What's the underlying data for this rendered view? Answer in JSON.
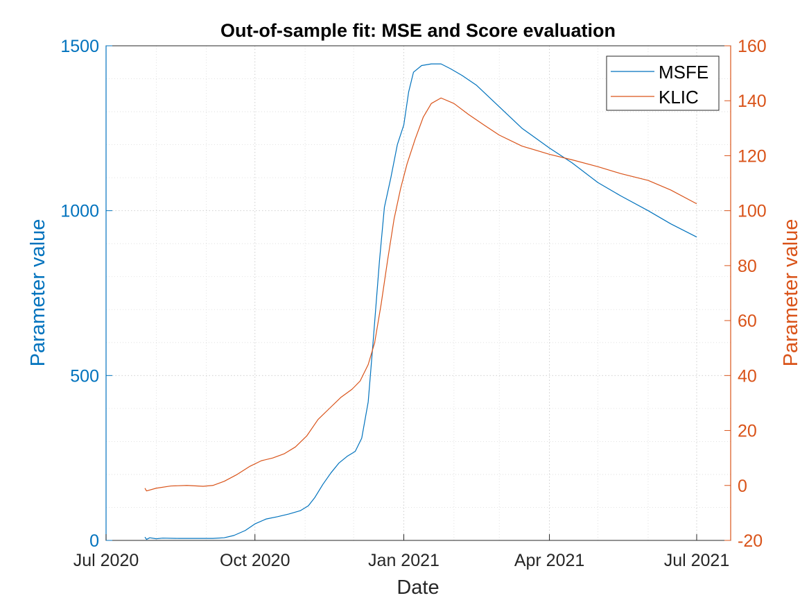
{
  "chart_data": {
    "type": "line",
    "title": "Out-of-sample fit: MSE and Score evaluation",
    "xlabel": "Date",
    "ylabel_left": "Parameter value",
    "ylabel_right": "Parameter value",
    "x_ticks": [
      "Jul 2020",
      "Oct 2020",
      "Jan 2021",
      "Apr 2021",
      "Jul 2021"
    ],
    "y_left_ticks": [
      "0",
      "500",
      "1000",
      "1500"
    ],
    "y_right_ticks": [
      "-20",
      "0",
      "20",
      "40",
      "60",
      "80",
      "100",
      "120",
      "140",
      "160"
    ],
    "xlim": [
      "2020-07-01",
      "2021-07-22"
    ],
    "ylim_left": [
      0,
      1500
    ],
    "ylim_right": [
      -20,
      160
    ],
    "grid": true,
    "legend_position": "top-right",
    "colors": {
      "msfe": "#0072BD",
      "klic": "#D95319",
      "axis": "#262626"
    },
    "series": [
      {
        "name": "MSFE",
        "axis": "left",
        "points": [
          [
            "2020-07-25",
            10
          ],
          [
            "2020-07-26",
            3
          ],
          [
            "2020-07-28",
            8
          ],
          [
            "2020-08-01",
            5
          ],
          [
            "2020-08-05",
            7
          ],
          [
            "2020-08-15",
            6
          ],
          [
            "2020-08-25",
            6
          ],
          [
            "2020-09-05",
            6
          ],
          [
            "2020-09-12",
            8
          ],
          [
            "2020-09-18",
            15
          ],
          [
            "2020-09-25",
            30
          ],
          [
            "2020-10-01",
            50
          ],
          [
            "2020-10-08",
            65
          ],
          [
            "2020-10-15",
            72
          ],
          [
            "2020-10-22",
            80
          ],
          [
            "2020-10-29",
            90
          ],
          [
            "2020-11-03",
            105
          ],
          [
            "2020-11-07",
            130
          ],
          [
            "2020-11-12",
            170
          ],
          [
            "2020-11-17",
            205
          ],
          [
            "2020-11-22",
            235
          ],
          [
            "2020-11-27",
            255
          ],
          [
            "2020-12-02",
            270
          ],
          [
            "2020-12-06",
            310
          ],
          [
            "2020-12-10",
            420
          ],
          [
            "2020-12-13",
            600
          ],
          [
            "2020-12-17",
            850
          ],
          [
            "2020-12-20",
            1010
          ],
          [
            "2020-12-24",
            1100
          ],
          [
            "2020-12-28",
            1200
          ],
          [
            "2021-01-01",
            1260
          ],
          [
            "2021-01-04",
            1360
          ],
          [
            "2021-01-07",
            1420
          ],
          [
            "2021-01-12",
            1440
          ],
          [
            "2021-01-18",
            1445
          ],
          [
            "2021-01-24",
            1445
          ],
          [
            "2021-01-30",
            1430
          ],
          [
            "2021-02-06",
            1410
          ],
          [
            "2021-02-15",
            1380
          ],
          [
            "2021-03-01",
            1315
          ],
          [
            "2021-03-15",
            1250
          ],
          [
            "2021-04-01",
            1190
          ],
          [
            "2021-04-15",
            1145
          ],
          [
            "2021-05-01",
            1085
          ],
          [
            "2021-05-15",
            1045
          ],
          [
            "2021-06-01",
            1000
          ],
          [
            "2021-06-15",
            960
          ],
          [
            "2021-07-01",
            920
          ]
        ]
      },
      {
        "name": "KLIC",
        "axis": "right",
        "points": [
          [
            "2020-07-25",
            -1
          ],
          [
            "2020-07-26",
            -2
          ],
          [
            "2020-08-01",
            -1
          ],
          [
            "2020-08-10",
            -0.2
          ],
          [
            "2020-08-20",
            0
          ],
          [
            "2020-08-30",
            -0.3
          ],
          [
            "2020-09-05",
            0
          ],
          [
            "2020-09-12",
            1.5
          ],
          [
            "2020-09-20",
            4
          ],
          [
            "2020-09-28",
            7
          ],
          [
            "2020-10-05",
            9
          ],
          [
            "2020-10-12",
            10
          ],
          [
            "2020-10-19",
            11.5
          ],
          [
            "2020-10-26",
            14
          ],
          [
            "2020-11-02",
            18
          ],
          [
            "2020-11-09",
            24
          ],
          [
            "2020-11-16",
            28
          ],
          [
            "2020-11-23",
            32
          ],
          [
            "2020-11-30",
            35
          ],
          [
            "2020-12-05",
            38
          ],
          [
            "2020-12-10",
            44
          ],
          [
            "2020-12-14",
            52
          ],
          [
            "2020-12-18",
            66
          ],
          [
            "2020-12-22",
            82
          ],
          [
            "2020-12-26",
            97
          ],
          [
            "2020-12-30",
            108
          ],
          [
            "2021-01-03",
            117
          ],
          [
            "2021-01-08",
            126
          ],
          [
            "2021-01-13",
            134
          ],
          [
            "2021-01-18",
            139
          ],
          [
            "2021-01-24",
            141
          ],
          [
            "2021-02-01",
            139
          ],
          [
            "2021-02-10",
            135
          ],
          [
            "2021-02-20",
            131
          ],
          [
            "2021-03-01",
            127.5
          ],
          [
            "2021-03-15",
            123.5
          ],
          [
            "2021-04-01",
            120.5
          ],
          [
            "2021-04-15",
            118.5
          ],
          [
            "2021-05-01",
            116
          ],
          [
            "2021-05-15",
            113.5
          ],
          [
            "2021-06-01",
            111
          ],
          [
            "2021-06-15",
            107.5
          ],
          [
            "2021-07-01",
            102.5
          ]
        ]
      }
    ]
  }
}
